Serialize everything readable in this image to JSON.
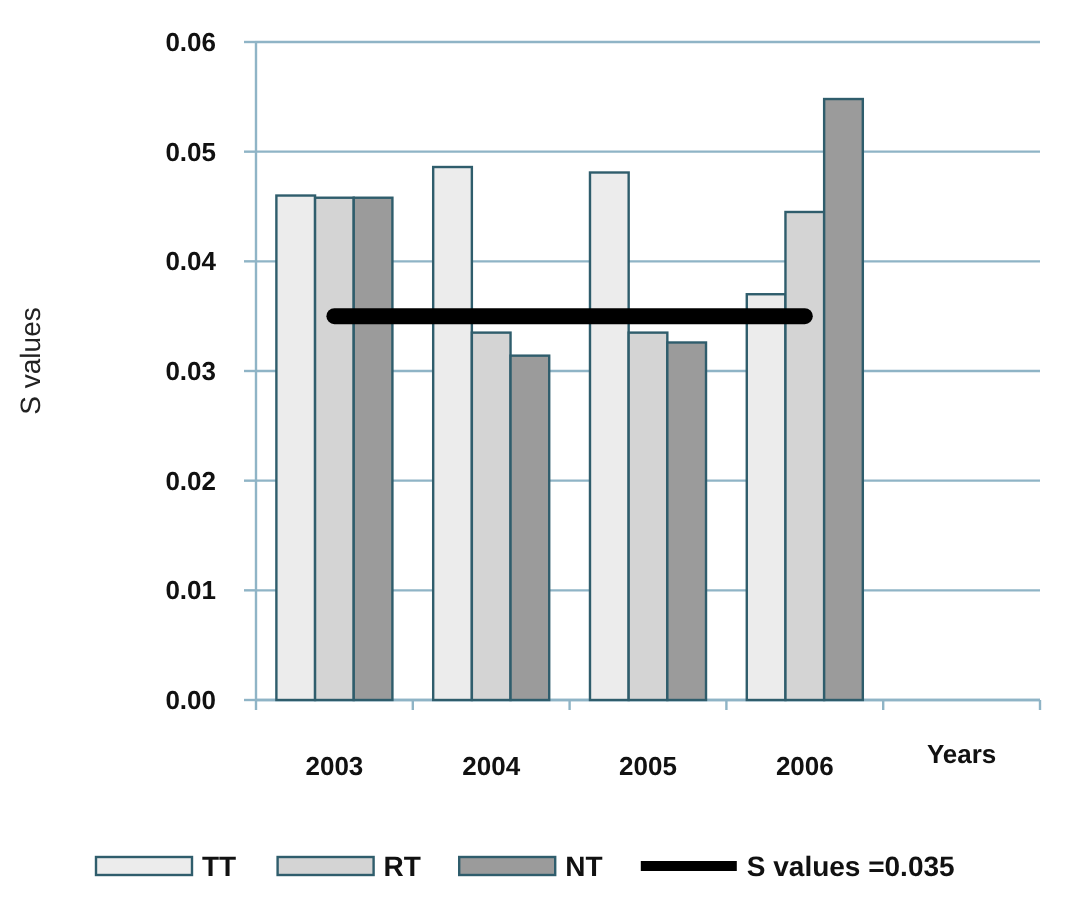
{
  "chart_data": {
    "type": "bar",
    "ylabel": "S values",
    "xlabel": "Years",
    "categories": [
      "2003",
      "2004",
      "2005",
      "2006"
    ],
    "series": [
      {
        "name": "TT",
        "color": "#ececec",
        "values": [
          0.046,
          0.0486,
          0.0481,
          0.037
        ]
      },
      {
        "name": "RT",
        "color": "#d4d4d4",
        "values": [
          0.0458,
          0.0335,
          0.0335,
          0.0445
        ]
      },
      {
        "name": "NT",
        "color": "#9b9b9b",
        "values": [
          0.0458,
          0.0314,
          0.0326,
          0.0548
        ]
      },
      {
        "name": "S values =0.035",
        "type": "line",
        "color": "#000000",
        "values": [
          0.035,
          0.035,
          0.035,
          0.035
        ]
      }
    ],
    "ylim": [
      0,
      0.06
    ],
    "yticks": [
      {
        "value": 0,
        "label": "0.00"
      },
      {
        "value": 0.01,
        "label": "0.01"
      },
      {
        "value": 0.02,
        "label": "0.02"
      },
      {
        "value": 0.03,
        "label": "0.03"
      },
      {
        "value": 0.04,
        "label": "0.04"
      },
      {
        "value": 0.05,
        "label": "0.05"
      },
      {
        "value": 0.06,
        "label": "0.06"
      }
    ],
    "grid": "y",
    "legend": "bottom"
  }
}
